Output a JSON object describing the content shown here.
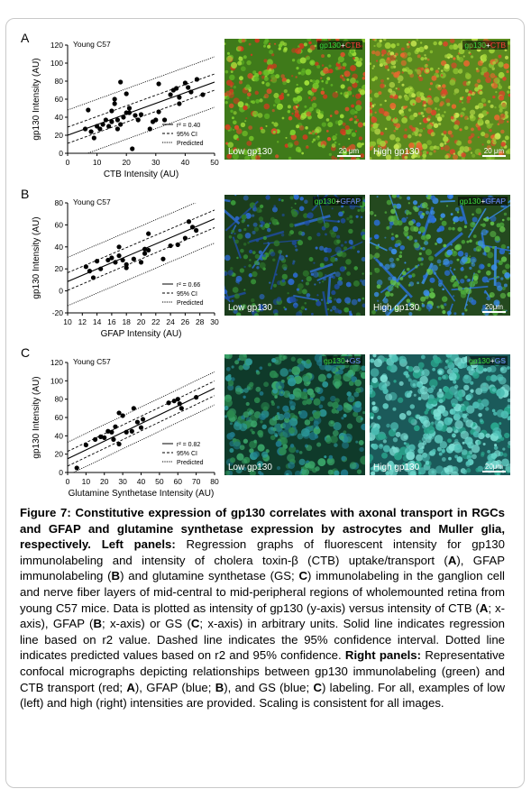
{
  "panels": [
    {
      "letter": "A",
      "graph_title": "Young C57",
      "micrographs": [
        {
          "label": "Low gp130",
          "tag": [
            "gp130",
            "+",
            "CTB"
          ],
          "tag_colors": [
            "#3ddc3d",
            "#ffffff",
            "#ff3a3a"
          ],
          "scale": "20 μm"
        },
        {
          "label": "High gp130",
          "tag": [
            "gp130",
            "+",
            "CTB"
          ],
          "tag_colors": [
            "#3ddc3d",
            "#ffffff",
            "#ff3a3a"
          ],
          "scale": "20 μm"
        }
      ]
    },
    {
      "letter": "B",
      "graph_title": "Young C57",
      "micrographs": [
        {
          "label": "Low gp130",
          "tag": [
            "gp130",
            "+",
            "GFAP"
          ],
          "tag_colors": [
            "#3ddc3d",
            "#ffffff",
            "#6f8dff"
          ],
          "scale": ""
        },
        {
          "label": "High gp130",
          "tag": [
            "gp130",
            "+",
            "GFAP"
          ],
          "tag_colors": [
            "#3ddc3d",
            "#ffffff",
            "#6f8dff"
          ],
          "scale": "20μm"
        }
      ]
    },
    {
      "letter": "C",
      "graph_title": "Young C57",
      "micrographs": [
        {
          "label": "Low gp130",
          "tag": [
            "gp130",
            "+",
            "GS"
          ],
          "tag_colors": [
            "#3ddc3d",
            "#ffffff",
            "#6f8dff"
          ],
          "scale": ""
        },
        {
          "label": "High gp130",
          "tag": [
            "gp130",
            "+",
            "GS"
          ],
          "tag_colors": [
            "#3ddc3d",
            "#ffffff",
            "#6f8dff"
          ],
          "scale": "20μm"
        }
      ]
    }
  ],
  "chart_data": [
    {
      "type": "scatter",
      "title": "Young C57",
      "xlabel": "CTB Intensity (AU)",
      "ylabel": "gp130 Intensity (AU)",
      "xlim": [
        0,
        50
      ],
      "ylim": [
        0,
        120
      ],
      "xticks": [
        0,
        10,
        20,
        30,
        40,
        50
      ],
      "yticks": [
        0,
        20,
        40,
        60,
        80,
        100,
        120
      ],
      "points": [
        [
          6,
          27
        ],
        [
          7,
          48
        ],
        [
          8,
          24
        ],
        [
          9,
          17
        ],
        [
          10,
          30
        ],
        [
          11,
          27
        ],
        [
          12,
          32
        ],
        [
          13,
          37
        ],
        [
          14,
          30
        ],
        [
          15,
          35
        ],
        [
          15,
          47
        ],
        [
          16,
          55
        ],
        [
          16,
          60
        ],
        [
          17,
          37
        ],
        [
          17,
          27
        ],
        [
          18,
          79
        ],
        [
          18,
          32
        ],
        [
          19,
          40
        ],
        [
          20,
          45
        ],
        [
          20,
          66
        ],
        [
          21,
          50
        ],
        [
          21,
          45
        ],
        [
          22,
          5
        ],
        [
          23,
          42
        ],
        [
          24,
          37
        ],
        [
          25,
          43
        ],
        [
          28,
          27
        ],
        [
          29,
          35
        ],
        [
          30,
          37
        ],
        [
          31,
          46
        ],
        [
          31,
          77
        ],
        [
          33,
          37
        ],
        [
          35,
          65
        ],
        [
          36,
          70
        ],
        [
          37,
          72
        ],
        [
          38,
          62
        ],
        [
          38,
          55
        ],
        [
          40,
          78
        ],
        [
          41,
          73
        ],
        [
          42,
          68
        ],
        [
          44,
          82
        ],
        [
          46,
          65
        ]
      ],
      "regression": {
        "slope": 1.18,
        "intercept": 20
      },
      "ci_offset": 9,
      "pred_offset": 28,
      "legend": [
        "r² = 0.40",
        "95% CI",
        "Predicted"
      ],
      "legend_position": "bottom-right"
    },
    {
      "type": "scatter",
      "title": "Young C57",
      "xlabel": "GFAP Intensity (AU)",
      "ylabel": "gp130 Intensity (AU)",
      "xlim": [
        10,
        30
      ],
      "ylim": [
        -20,
        80
      ],
      "xticks": [
        10,
        12,
        14,
        16,
        18,
        20,
        22,
        24,
        26,
        28,
        30
      ],
      "yticks": [
        -20,
        0,
        20,
        40,
        60,
        80
      ],
      "points": [
        [
          12.5,
          22
        ],
        [
          13,
          18
        ],
        [
          13.5,
          12
        ],
        [
          14,
          27
        ],
        [
          14.5,
          20
        ],
        [
          15.5,
          28
        ],
        [
          16,
          30
        ],
        [
          16.5,
          26
        ],
        [
          17,
          32
        ],
        [
          17,
          40
        ],
        [
          17.5,
          28
        ],
        [
          18,
          24
        ],
        [
          18,
          21
        ],
        [
          19,
          29
        ],
        [
          20,
          26
        ],
        [
          20.5,
          38
        ],
        [
          20.5,
          34
        ],
        [
          21,
          52
        ],
        [
          21,
          37
        ],
        [
          23,
          29
        ],
        [
          24,
          41
        ],
        [
          25,
          42
        ],
        [
          26,
          48
        ],
        [
          26.5,
          63
        ],
        [
          27,
          58
        ],
        [
          27.5,
          55
        ]
      ],
      "regression": {
        "slope": 2.85,
        "intercept": -20
      },
      "ci_offset": 8,
      "pred_offset": 22,
      "legend": [
        "r² = 0.66",
        "95% CI",
        "Predicted"
      ],
      "legend_position": "bottom-right"
    },
    {
      "type": "scatter",
      "title": "Young C57",
      "xlabel": "Glutamine Synthetase Intensity (AU)",
      "ylabel": "gp130 Intensity (AU)",
      "xlim": [
        0,
        80
      ],
      "ylim": [
        0,
        120
      ],
      "xticks": [
        0,
        10,
        20,
        30,
        40,
        50,
        60,
        70,
        80
      ],
      "yticks": [
        0,
        20,
        40,
        60,
        80,
        100,
        120
      ],
      "points": [
        [
          5,
          5
        ],
        [
          10,
          30
        ],
        [
          15,
          36
        ],
        [
          18,
          39
        ],
        [
          20,
          38
        ],
        [
          22,
          45
        ],
        [
          24,
          44
        ],
        [
          25,
          36
        ],
        [
          26,
          50
        ],
        [
          28,
          65
        ],
        [
          28,
          31
        ],
        [
          30,
          62
        ],
        [
          32,
          44
        ],
        [
          35,
          45
        ],
        [
          36,
          70
        ],
        [
          38,
          55
        ],
        [
          40,
          49
        ],
        [
          41,
          58
        ],
        [
          55,
          76
        ],
        [
          58,
          78
        ],
        [
          60,
          80
        ],
        [
          61,
          75
        ],
        [
          62,
          70
        ],
        [
          70,
          82
        ]
      ],
      "regression": {
        "slope": 0.96,
        "intercept": 15
      },
      "ci_offset": 8,
      "pred_offset": 18,
      "legend": [
        "r² = 0.82",
        "95% CI",
        "Predicted"
      ],
      "legend_position": "bottom-right"
    }
  ],
  "caption": {
    "heading": "Figure 7: Constitutive expression of gp130 correlates with axonal transport in RGCs and GFAP and glutamine synthetase expression by astrocytes and Muller glia, respectively.",
    "left_label": "Left panels:",
    "left_text_1": "Regression graphs of fluorescent intensity for gp130 immunolabeling and intensity of cholera toxin-β (CTB) uptake/transport (",
    "left_text_2": "), GFAP immunolabeling (",
    "left_text_3": ") and glutamine synthetase (GS; ",
    "left_text_4": ") immunolabeling in the ganglion cell and nerve fiber layers of mid-central to mid-peripheral regions of wholemounted retina from young C57 mice. Data is plotted as intensity of gp130 (y-axis) versus intensity of CTB (",
    "left_text_5": "; x-axis), GFAP (",
    "left_text_6": "; x-axis) or GS (",
    "left_text_7": "; x-axis) in arbitrary units. Solid line indicates regression line based on r2 value. Dashed line indicates the 95% confidence interval. Dotted line indicates predicted values based on r2 and 95% confidence.",
    "right_label": "Right panels:",
    "right_text_1": "Representative confocal micrographs depicting relationships between gp130 immunolabeling (green) and CTB transport (red; ",
    "right_text_2": "), GFAP (blue; ",
    "right_text_3": "), and GS (blue; ",
    "right_text_4": ") labeling. For all, examples of low (left) and high (right) intensities are provided. Scaling is consistent for all images.",
    "letter_a": "A",
    "letter_b": "B",
    "letter_c": "C"
  }
}
